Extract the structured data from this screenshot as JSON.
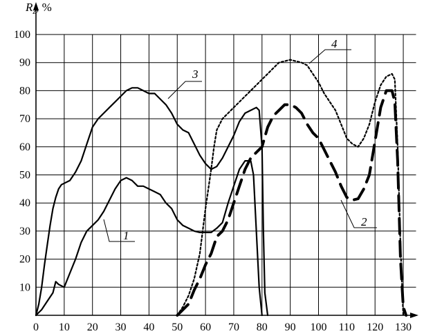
{
  "chart_data": {
    "type": "line",
    "title": "",
    "xlabel": "",
    "ylabel": "R_z, %",
    "ylabel_main": "R",
    "ylabel_sub": "z",
    "ylabel_suffix": ", %",
    "xlim": [
      0,
      135
    ],
    "ylim": [
      0,
      100
    ],
    "x_ticks": [
      0,
      10,
      20,
      30,
      40,
      50,
      60,
      70,
      80,
      90,
      100,
      110,
      120,
      130
    ],
    "y_ticks": [
      10,
      20,
      30,
      40,
      50,
      60,
      70,
      80,
      90,
      100
    ],
    "grid": true,
    "legend": "labels on curves",
    "series": [
      {
        "name": "1",
        "style": "solid",
        "x": [
          0,
          2,
          4,
          6,
          7,
          8,
          10,
          12,
          14,
          16,
          18,
          20,
          22,
          24,
          26,
          28,
          30,
          32,
          34,
          36,
          38,
          40,
          42,
          44,
          46,
          48,
          50,
          52,
          54,
          56,
          58,
          60,
          62,
          64,
          66,
          68,
          70,
          72,
          74,
          76,
          77,
          78,
          79,
          80
        ],
        "y": [
          0,
          2,
          5,
          8,
          12,
          11,
          10,
          15,
          20,
          26,
          30,
          32,
          34,
          37,
          41,
          45,
          48,
          49,
          48,
          46,
          46,
          45,
          44,
          43,
          40,
          38,
          34,
          32,
          31,
          30,
          29.5,
          29.5,
          29.5,
          31,
          33,
          40,
          46,
          52,
          55,
          55,
          50,
          30,
          10,
          0
        ]
      },
      {
        "name": "2",
        "style": "long-dash",
        "x": [
          50,
          52,
          54,
          56,
          58,
          60,
          62,
          64,
          66,
          68,
          70,
          72,
          74,
          76,
          78,
          80,
          82,
          84,
          86,
          88,
          90,
          92,
          94,
          96,
          98,
          100,
          102,
          104,
          106,
          108,
          110,
          112,
          114,
          116,
          118,
          120,
          122,
          124,
          126,
          127,
          128,
          129,
          130,
          131
        ],
        "y": [
          0,
          2,
          4,
          9,
          13,
          18,
          22,
          28,
          30,
          34,
          40,
          46,
          52,
          56,
          58,
          60,
          67,
          71,
          73,
          75,
          75,
          74,
          72,
          68,
          65,
          63,
          59,
          55,
          51,
          46,
          42,
          41,
          41.5,
          45,
          50,
          62,
          74,
          80,
          80,
          76,
          55,
          20,
          3,
          0
        ]
      },
      {
        "name": "3",
        "style": "solid",
        "x": [
          0,
          1,
          2,
          3,
          4,
          5,
          6,
          7,
          8,
          9,
          10,
          12,
          14,
          16,
          18,
          20,
          22,
          24,
          26,
          28,
          30,
          32,
          34,
          36,
          38,
          40,
          42,
          44,
          46,
          48,
          50,
          52,
          54,
          56,
          58,
          60,
          62,
          64,
          66,
          68,
          70,
          72,
          74,
          76,
          78,
          79,
          80,
          80.5,
          81,
          82
        ],
        "y": [
          0,
          4,
          10,
          18,
          25,
          32,
          38,
          42,
          45,
          46.5,
          47,
          48,
          51,
          55,
          61,
          67,
          70,
          72,
          74,
          76,
          78,
          80,
          81,
          81,
          80,
          79,
          79,
          77,
          75,
          72,
          68,
          66,
          65,
          61,
          57,
          54,
          52,
          53,
          56,
          60,
          64,
          69,
          72,
          73,
          74,
          73,
          60,
          30,
          8,
          0
        ]
      },
      {
        "name": "4",
        "style": "dotted",
        "x": [
          50,
          52,
          54,
          56,
          58,
          60,
          62,
          63,
          64,
          66,
          68,
          70,
          72,
          74,
          76,
          78,
          80,
          82,
          84,
          86,
          88,
          90,
          92,
          94,
          96,
          98,
          100,
          102,
          104,
          106,
          108,
          110,
          112,
          114,
          116,
          118,
          120,
          122,
          124,
          126,
          127,
          128,
          129,
          130
        ],
        "y": [
          0,
          3,
          7,
          13,
          22,
          38,
          52,
          60,
          66,
          70,
          72,
          74,
          76,
          78,
          80,
          82,
          84,
          86,
          88,
          90,
          90.5,
          91,
          90.5,
          90,
          89,
          86,
          83,
          79,
          76,
          73,
          68,
          63,
          61,
          60,
          63,
          68,
          76,
          82,
          85,
          86,
          84,
          60,
          25,
          0
        ]
      }
    ],
    "curve_labels": [
      {
        "name": "1",
        "text": "1"
      },
      {
        "name": "2",
        "text": "2"
      },
      {
        "name": "3",
        "text": "3"
      },
      {
        "name": "4",
        "text": "4"
      }
    ]
  }
}
